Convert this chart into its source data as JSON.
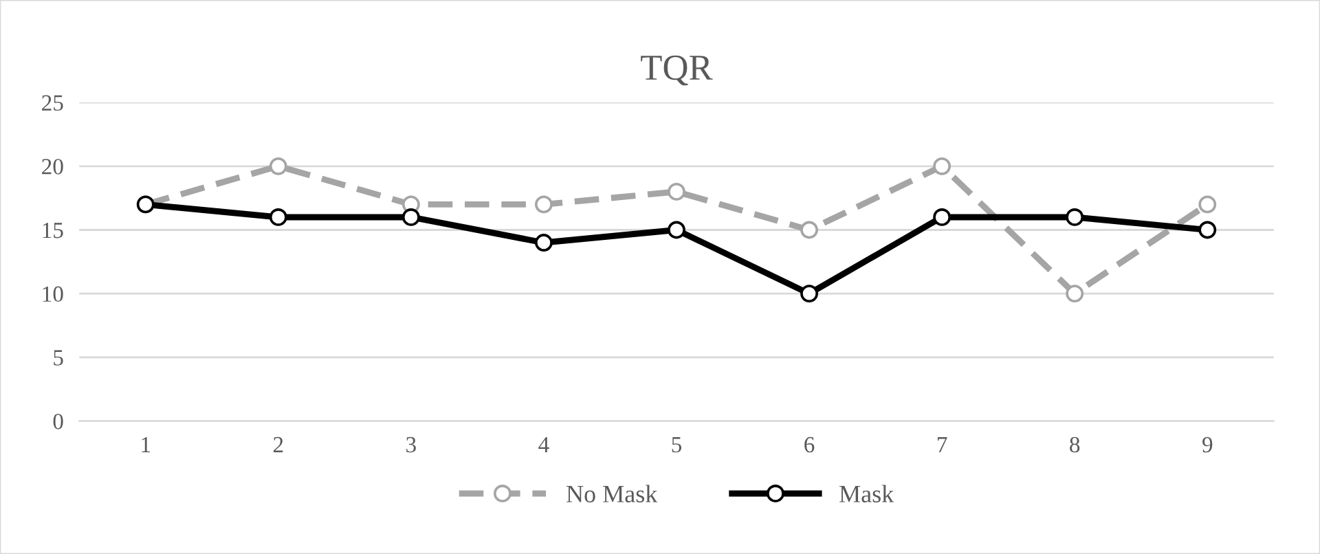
{
  "chart_data": {
    "type": "line",
    "title": "TQR",
    "categories": [
      "1",
      "2",
      "3",
      "4",
      "5",
      "6",
      "7",
      "8",
      "9"
    ],
    "series": [
      {
        "name": "No Mask",
        "color": "#a5a5a5",
        "line_style": "dashed",
        "values": [
          17,
          20,
          17,
          17,
          18,
          15,
          20,
          10,
          17
        ]
      },
      {
        "name": "Mask",
        "color": "#000000",
        "line_style": "solid",
        "values": [
          17,
          16,
          16,
          14,
          15,
          10,
          16,
          16,
          15
        ]
      }
    ],
    "ylim": [
      0,
      25
    ],
    "yticks": [
      0,
      5,
      10,
      15,
      20,
      25
    ],
    "grid": "y",
    "legend": "bottom",
    "marker": "circle"
  }
}
